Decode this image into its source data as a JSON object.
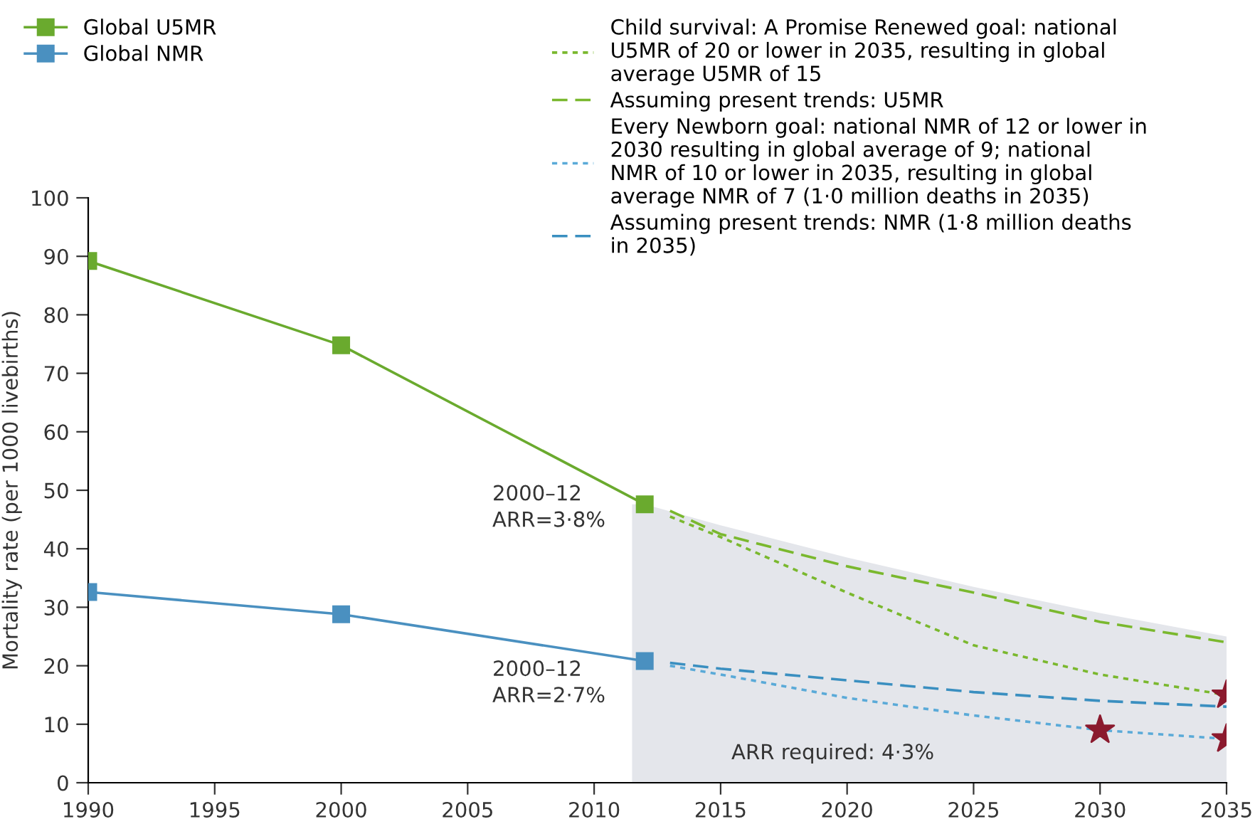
{
  "chart_data": {
    "type": "line",
    "ylabel": "Mortality rate (per 1000 livebirths)",
    "xlim": [
      1990,
      2035
    ],
    "xticks": [
      1990,
      1995,
      2000,
      2005,
      2010,
      2015,
      2020,
      2025,
      2030,
      2035
    ],
    "ylim": [
      0,
      100
    ],
    "yticks": [
      0,
      10,
      20,
      30,
      40,
      50,
      60,
      70,
      80,
      90,
      100
    ],
    "grid": false,
    "legend": "top",
    "series": [
      {
        "type": "area",
        "color": "#e4e6eb",
        "marker": "none",
        "x": [
          2011.5,
          2012,
          2015,
          2020,
          2025,
          2030,
          2035
        ],
        "values": [
          47.6,
          47.6,
          44,
          38.5,
          33.5,
          29,
          25
        ]
      },
      {
        "name": "Global U5MR",
        "color": "#6aaa2e",
        "marker": "square",
        "line_style": "solid",
        "x": [
          1990,
          2000,
          2012
        ],
        "values": [
          89.2,
          74.8,
          47.6
        ]
      },
      {
        "name": "Global NMR",
        "color": "#4a90c0",
        "marker": "square",
        "line_style": "solid",
        "x": [
          1990,
          2000,
          2012
        ],
        "values": [
          32.6,
          28.8,
          20.8
        ]
      },
      {
        "name": "Child survival: A Promise Renewed goal: national U5MR of 20 or lower in 2035, resulting in global average U5MR of 15",
        "color": "#7ab82e",
        "marker": "none",
        "line_style": "dotted",
        "x": [
          2013,
          2015,
          2020,
          2025,
          2030,
          2035
        ],
        "values": [
          45.5,
          42,
          32.5,
          23.5,
          18.5,
          15
        ]
      },
      {
        "name": "Assuming present trends: U5MR",
        "color": "#7ab82e",
        "marker": "none",
        "line_style": "dashed",
        "x": [
          2013,
          2015,
          2020,
          2025,
          2030,
          2035
        ],
        "values": [
          46.5,
          42.5,
          37,
          32.5,
          27.5,
          24
        ]
      },
      {
        "name": "Every Newborn goal: national NMR of 12 or lower in 2030 resulting in global average of 9; national NMR of 10 or lower in 2035, resulting in global average NMR of 7 (1·0 million deaths in 2035)",
        "color": "#5aaad8",
        "marker": "none",
        "line_style": "dotted",
        "x": [
          2013,
          2015,
          2020,
          2025,
          2030,
          2035
        ],
        "values": [
          20,
          18.5,
          14.5,
          11.5,
          9,
          7.5
        ]
      },
      {
        "name": "Assuming present trends: NMR (1·8 million deaths in 2035)",
        "color": "#3a8fc0",
        "marker": "none",
        "line_style": "dashed",
        "x": [
          2013,
          2015,
          2020,
          2025,
          2030,
          2035
        ],
        "values": [
          20.5,
          19.5,
          17.5,
          15.5,
          14,
          13
        ]
      },
      {
        "type": "scatter",
        "color": "#8b1a2e",
        "marker": "star",
        "x": [
          2030,
          2035,
          2035
        ],
        "values": [
          9,
          15,
          7.5
        ]
      }
    ],
    "annotations": [
      "2000–12\nARR=3·8%",
      "2000–12\nARR=2·7%",
      "ARR required: 4·3%"
    ]
  }
}
